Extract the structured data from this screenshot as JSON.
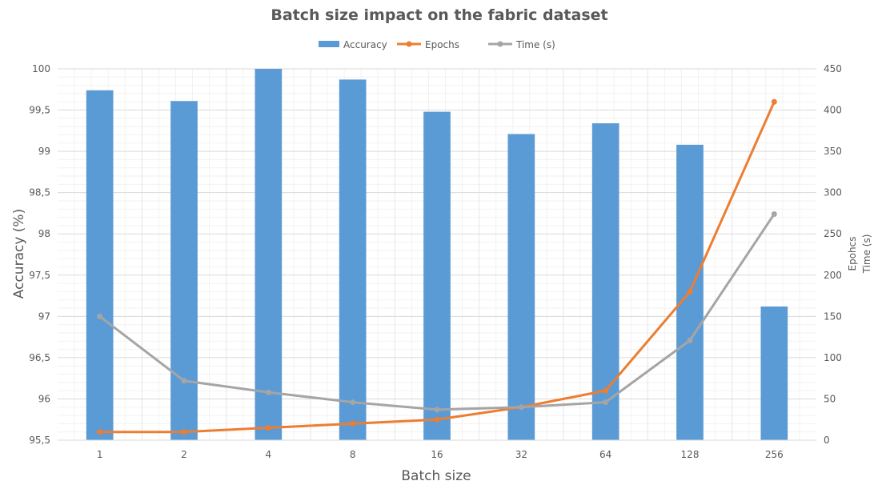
{
  "chart_data": {
    "type": "bar",
    "title": "Batch size impact on the fabric dataset",
    "xlabel": "Batch size",
    "ylabel": "Accuracy (%)",
    "y2label_lines": [
      "Epohcs",
      "Time (s)"
    ],
    "categories": [
      "1",
      "2",
      "4",
      "8",
      "16",
      "32",
      "64",
      "128",
      "256"
    ],
    "ylim": [
      95.5,
      100
    ],
    "y_ticks": [
      95.5,
      96,
      96.5,
      97,
      97.5,
      98,
      98.5,
      99,
      99.5,
      100
    ],
    "y_tick_labels": [
      "95,5",
      "96",
      "96,5",
      "97",
      "97,5",
      "98",
      "98,5",
      "99",
      "99,5",
      "100"
    ],
    "y2lim": [
      0,
      450
    ],
    "y2_ticks": [
      0,
      50,
      100,
      150,
      200,
      250,
      300,
      350,
      400,
      450
    ],
    "y2_tick_labels": [
      "0",
      "50",
      "100",
      "150",
      "200",
      "250",
      "300",
      "350",
      "400",
      "450"
    ],
    "grid": true,
    "legend_position": "top",
    "series": [
      {
        "name": "Accuracy",
        "kind": "bar",
        "axis": "left",
        "color": "#5b9bd5",
        "values": [
          99.74,
          99.61,
          100,
          99.87,
          99.48,
          99.21,
          99.34,
          99.08,
          97.12
        ]
      },
      {
        "name": "Epochs",
        "kind": "line",
        "axis": "right",
        "color": "#ed7d31",
        "values": [
          10,
          10,
          15,
          20,
          25,
          40,
          60,
          180,
          410
        ]
      },
      {
        "name": "Time (s)",
        "kind": "line",
        "axis": "right",
        "color": "#a5a5a5",
        "values": [
          150,
          72,
          58,
          46,
          37,
          40,
          46,
          121,
          274
        ]
      }
    ]
  }
}
